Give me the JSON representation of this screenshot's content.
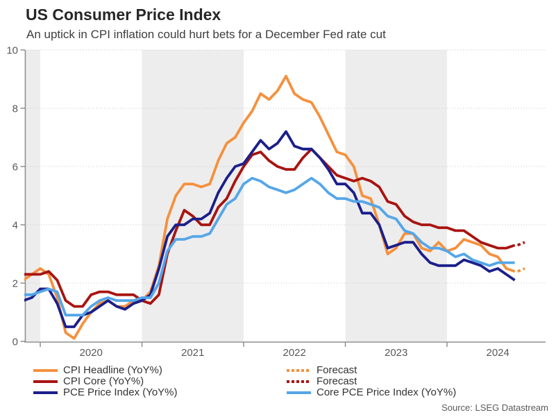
{
  "header": {
    "title": "US Consumer Price Index",
    "subtitle": "An uptick in CPI inflation could hurt bets for a December Fed rate cut"
  },
  "source": "Source: LSEG Datastream",
  "chart_data": {
    "type": "line",
    "title": "US Consumer Price Index",
    "subtitle": "An uptick in CPI inflation could hurt bets for a December Fed rate cut",
    "frequency": "monthly",
    "x_start": "2019-11",
    "x_line_end": "2024-09",
    "x_forecast_month": "2024-10",
    "x_tick_labels": [
      "2020",
      "2021",
      "2022",
      "2023",
      "2024"
    ],
    "y_ticks": [
      0,
      2,
      4,
      6,
      8,
      10
    ],
    "ylim": [
      0,
      10
    ],
    "grid": "dotted-horizontal",
    "band_color": "#EDEDED",
    "shaded_year_bands": [
      "pre-2020",
      "2021",
      "2023"
    ],
    "axis_color": "#8f8f8f",
    "tick_label_color": "#595959",
    "legend_position": "bottom",
    "series": [
      {
        "id": "cpi-headline",
        "name": "CPI Headline (YoY%)",
        "color": "#F5913E",
        "style": "solid",
        "values": [
          2.1,
          2.3,
          2.5,
          2.3,
          1.5,
          0.3,
          0.1,
          0.6,
          1.0,
          1.3,
          1.4,
          1.2,
          1.2,
          1.4,
          1.4,
          1.7,
          2.6,
          4.2,
          5.0,
          5.4,
          5.4,
          5.3,
          5.4,
          6.2,
          6.8,
          7.0,
          7.5,
          7.9,
          8.5,
          8.3,
          8.6,
          9.1,
          8.5,
          8.3,
          8.2,
          7.7,
          7.1,
          6.5,
          6.4,
          6.0,
          5.0,
          4.9,
          4.0,
          3.0,
          3.2,
          3.7,
          3.7,
          3.2,
          3.1,
          3.4,
          3.1,
          3.2,
          3.5,
          3.4,
          3.3,
          3.0,
          2.9,
          2.5,
          2.4
        ],
        "forecast": 2.5
      },
      {
        "id": "cpi-core",
        "name": "CPI Core (YoY%)",
        "color": "#A81410",
        "style": "solid",
        "values": [
          2.3,
          2.3,
          2.3,
          2.4,
          2.1,
          1.4,
          1.2,
          1.2,
          1.6,
          1.7,
          1.7,
          1.6,
          1.6,
          1.6,
          1.4,
          1.3,
          1.6,
          3.0,
          3.8,
          4.5,
          4.3,
          4.0,
          4.0,
          4.6,
          4.9,
          5.5,
          6.0,
          6.4,
          6.5,
          6.2,
          6.0,
          5.9,
          5.9,
          6.3,
          6.6,
          6.3,
          6.0,
          5.7,
          5.6,
          5.5,
          5.6,
          5.5,
          5.3,
          4.8,
          4.7,
          4.3,
          4.1,
          4.0,
          4.0,
          3.9,
          3.9,
          3.8,
          3.8,
          3.6,
          3.4,
          3.3,
          3.2,
          3.2,
          3.3
        ],
        "forecast": 3.4
      },
      {
        "id": "pce",
        "name": "PCE Price Index (YoY%)",
        "color": "#1B1F8A",
        "style": "solid",
        "values": [
          1.4,
          1.5,
          1.8,
          1.8,
          1.3,
          0.5,
          0.5,
          0.9,
          1.0,
          1.2,
          1.4,
          1.2,
          1.1,
          1.3,
          1.4,
          1.6,
          2.5,
          3.6,
          4.0,
          4.0,
          4.2,
          4.2,
          4.4,
          5.1,
          5.6,
          6.0,
          6.1,
          6.5,
          6.9,
          6.6,
          6.8,
          7.2,
          6.7,
          6.6,
          6.6,
          6.3,
          5.9,
          5.4,
          5.4,
          5.1,
          4.4,
          4.4,
          4.0,
          3.2,
          3.3,
          3.4,
          3.4,
          3.0,
          2.7,
          2.6,
          2.6,
          2.6,
          2.8,
          2.7,
          2.6,
          2.4,
          2.5,
          2.3,
          2.1
        ],
        "forecast": null
      },
      {
        "id": "core-pce",
        "name": "Core PCE Price Index (YoY%)",
        "color": "#55A6E8",
        "style": "solid",
        "values": [
          1.6,
          1.6,
          1.7,
          1.8,
          1.7,
          0.9,
          0.9,
          0.9,
          1.2,
          1.4,
          1.5,
          1.4,
          1.4,
          1.4,
          1.5,
          1.5,
          2.0,
          3.1,
          3.5,
          3.5,
          3.6,
          3.6,
          3.7,
          4.2,
          4.7,
          4.9,
          5.4,
          5.6,
          5.5,
          5.3,
          5.2,
          5.1,
          5.2,
          5.4,
          5.6,
          5.4,
          5.1,
          4.9,
          4.9,
          4.8,
          4.8,
          4.7,
          4.6,
          4.3,
          4.2,
          3.8,
          3.7,
          3.4,
          3.2,
          3.2,
          3.1,
          2.9,
          3.0,
          2.8,
          2.7,
          2.6,
          2.7,
          2.7,
          2.7
        ],
        "forecast": null
      }
    ]
  },
  "legend": {
    "left": [
      {
        "id": "cpi-headline",
        "label": "CPI Headline (YoY%)",
        "color": "#F5913E",
        "style": "solid"
      },
      {
        "id": "cpi-core",
        "label": "CPI Core (YoY%)",
        "color": "#A81410",
        "style": "solid"
      },
      {
        "id": "pce",
        "label": "PCE Price Index (YoY%)",
        "color": "#1B1F8A",
        "style": "solid"
      }
    ],
    "right": [
      {
        "id": "forecast-headline",
        "label": "Forecast",
        "color": "#F5913E",
        "style": "dotted"
      },
      {
        "id": "forecast-core",
        "label": "Forecast",
        "color": "#A81410",
        "style": "dotted"
      },
      {
        "id": "core-pce",
        "label": "Core PCE Price Index (YoY%)",
        "color": "#55A6E8",
        "style": "solid"
      }
    ]
  }
}
